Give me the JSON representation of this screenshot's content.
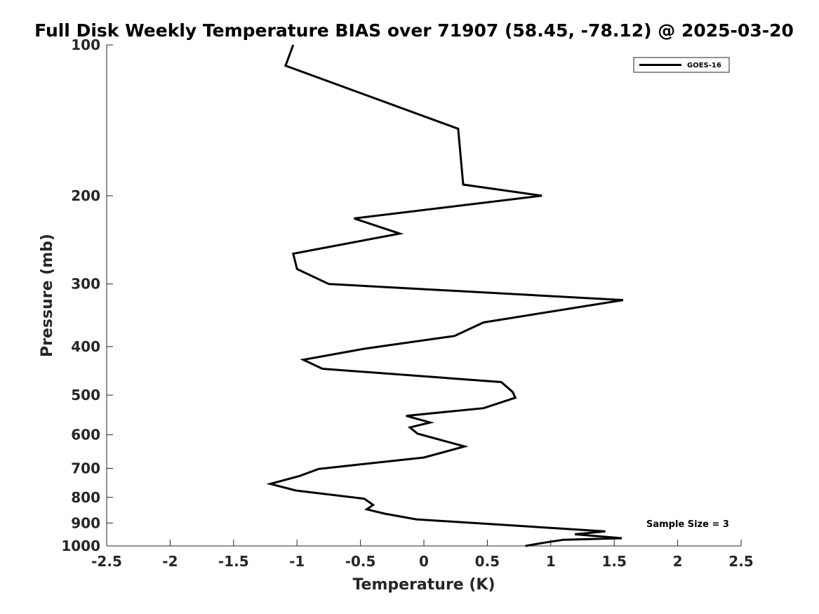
{
  "chart_data": {
    "type": "line",
    "title": "Full Disk Weekly Temperature BIAS over 71907 (58.45, -78.12) @ 2025-03-20",
    "xlabel": "Temperature (K)",
    "ylabel": "Pressure (mb)",
    "xlim": [
      -2.5,
      2.5
    ],
    "ylim": [
      1000,
      100
    ],
    "y_scale": "log",
    "x_ticks": [
      -2.5,
      -2,
      -1.5,
      -1,
      -0.5,
      0,
      0.5,
      1,
      1.5,
      2,
      2.5
    ],
    "x_tick_labels": [
      "-2.5",
      "-2",
      "-1.5",
      "-1",
      "-0.5",
      "0",
      "0.5",
      "1",
      "1.5",
      "2",
      "2.5"
    ],
    "y_ticks": [
      100,
      200,
      300,
      400,
      500,
      600,
      700,
      800,
      900,
      1000
    ],
    "y_tick_labels": [
      "100",
      "200",
      "300",
      "400",
      "500",
      "600",
      "700",
      "800",
      "900",
      "1000"
    ],
    "grid": false,
    "legend": {
      "placement": "top-right",
      "entries": [
        "GOES-16"
      ]
    },
    "annotation": "Sample Size = 3",
    "series": [
      {
        "name": "GOES-16",
        "color": "#000000",
        "x": [
          -1.03,
          -1.09,
          0.27,
          0.31,
          0.93,
          -0.55,
          -0.19,
          -1.03,
          -1.0,
          -0.75,
          1.57,
          0.47,
          0.24,
          -0.47,
          -0.95,
          -0.8,
          0.61,
          0.7,
          0.72,
          0.47,
          -0.14,
          0.05,
          -0.11,
          -0.05,
          0.32,
          0.0,
          -0.83,
          -0.98,
          -1.21,
          -1.01,
          -0.47,
          -0.4,
          -0.45,
          -0.31,
          -0.06,
          0.93,
          1.43,
          1.19,
          1.56,
          1.1,
          0.95,
          0.8
        ],
        "y": [
          100,
          110,
          147,
          190,
          200,
          222,
          238,
          261,
          280,
          300,
          323,
          358,
          381,
          404,
          425,
          443,
          471,
          493,
          506,
          531,
          550,
          567,
          580,
          597,
          633,
          666,
          702,
          725,
          752,
          775,
          805,
          828,
          845,
          862,
          885,
          918,
          935,
          948,
          965,
          972,
          985,
          1000
        ]
      }
    ]
  }
}
